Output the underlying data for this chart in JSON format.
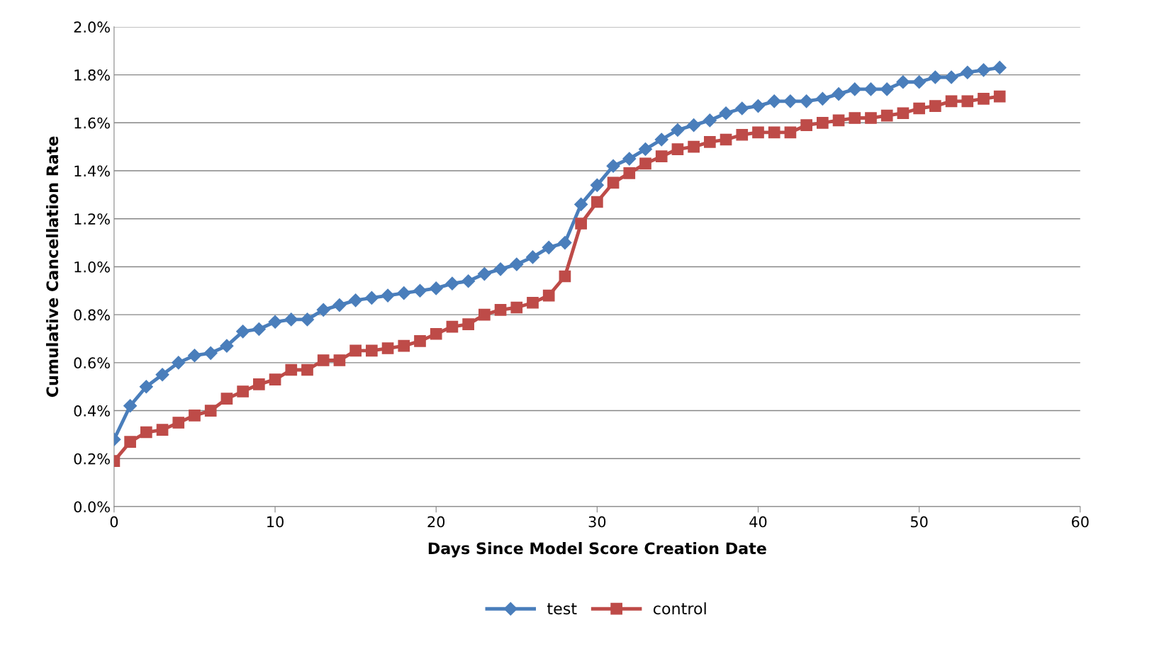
{
  "chart_data": {
    "type": "line",
    "xlabel": "Days Since Model Score Creation Date",
    "ylabel": "Cumulative Cancellation Rate",
    "x": [
      0,
      1,
      2,
      3,
      4,
      5,
      6,
      7,
      8,
      9,
      10,
      11,
      12,
      13,
      14,
      15,
      16,
      17,
      18,
      19,
      20,
      21,
      22,
      23,
      24,
      25,
      26,
      27,
      28,
      29,
      30,
      31,
      32,
      33,
      34,
      35,
      36,
      37,
      38,
      39,
      40,
      41,
      42,
      43,
      44,
      45,
      46,
      47,
      48,
      49,
      50,
      51,
      52,
      53,
      54,
      55
    ],
    "series": [
      {
        "name": "test",
        "color": "#4a7ebb",
        "marker": "diamond",
        "values": [
          0.28,
          0.42,
          0.5,
          0.55,
          0.6,
          0.63,
          0.64,
          0.67,
          0.73,
          0.74,
          0.77,
          0.78,
          0.78,
          0.82,
          0.84,
          0.86,
          0.87,
          0.88,
          0.89,
          0.9,
          0.91,
          0.93,
          0.94,
          0.97,
          0.99,
          1.01,
          1.04,
          1.08,
          1.1,
          1.26,
          1.34,
          1.42,
          1.45,
          1.49,
          1.53,
          1.57,
          1.59,
          1.61,
          1.64,
          1.66,
          1.67,
          1.69,
          1.69,
          1.69,
          1.7,
          1.72,
          1.74,
          1.74,
          1.74,
          1.77,
          1.77,
          1.79,
          1.79,
          1.81,
          1.82,
          1.83
        ]
      },
      {
        "name": "control",
        "color": "#be4b48",
        "marker": "square",
        "values": [
          0.19,
          0.27,
          0.31,
          0.32,
          0.35,
          0.38,
          0.4,
          0.45,
          0.48,
          0.51,
          0.53,
          0.57,
          0.57,
          0.61,
          0.61,
          0.65,
          0.65,
          0.66,
          0.67,
          0.69,
          0.72,
          0.75,
          0.76,
          0.8,
          0.82,
          0.83,
          0.85,
          0.88,
          0.96,
          1.18,
          1.27,
          1.35,
          1.39,
          1.43,
          1.46,
          1.49,
          1.5,
          1.52,
          1.53,
          1.55,
          1.56,
          1.56,
          1.56,
          1.59,
          1.6,
          1.61,
          1.62,
          1.62,
          1.63,
          1.64,
          1.66,
          1.67,
          1.69,
          1.69,
          1.7,
          1.71
        ]
      }
    ],
    "xlim": [
      0,
      60
    ],
    "xticks": [
      0,
      10,
      20,
      30,
      40,
      50,
      60
    ],
    "ylim": [
      0,
      2.0
    ],
    "yticks": [
      {
        "value": 0,
        "label": "0.0%"
      },
      {
        "value": 0.2,
        "label": "0.2%"
      },
      {
        "value": 0.4,
        "label": "0.4%"
      },
      {
        "value": 0.6,
        "label": "0.6%"
      },
      {
        "value": 0.8,
        "label": "0.8%"
      },
      {
        "value": 1.0,
        "label": "1.0%"
      },
      {
        "value": 1.2,
        "label": "1.2%"
      },
      {
        "value": 1.4,
        "label": "1.4%"
      },
      {
        "value": 1.6,
        "label": "1.6%"
      },
      {
        "value": 1.8,
        "label": "1.8%"
      },
      {
        "value": 2.0,
        "label": "2.0%"
      }
    ],
    "grid": "y",
    "legend": "bottom",
    "line_style": "solid"
  }
}
